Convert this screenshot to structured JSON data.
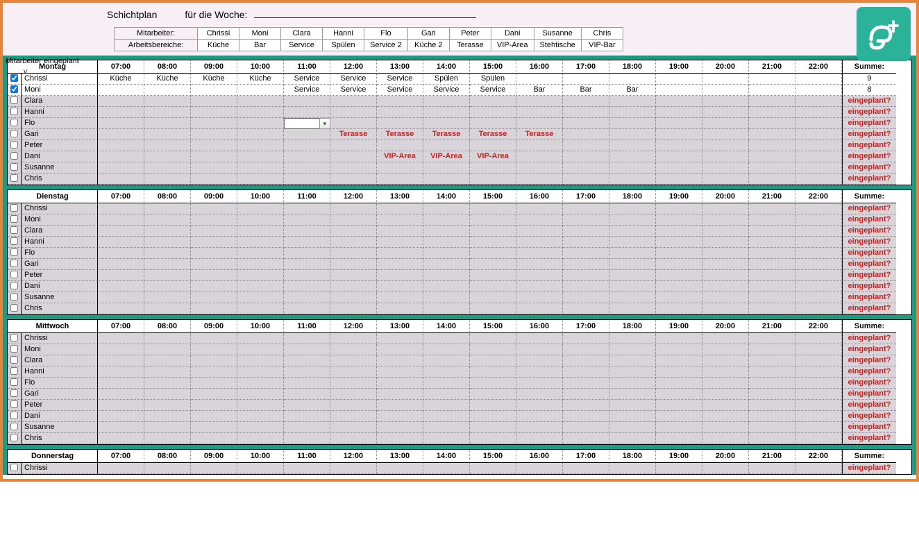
{
  "colors": {
    "border_outer": "#e8833a",
    "teal": "#1f9984",
    "header_bg": "#f9f0f5",
    "shaded": "#d9d4d9",
    "warn": "#cc2020",
    "logo_bg": "#2bb39a"
  },
  "header": {
    "title1": "Schichtplan",
    "title2": "für die Woche:",
    "staff_label": "Mitarbeiter:",
    "area_label": "Arbeitsbereiche:",
    "side_label": "Mitarbeiter eingeplant",
    "side_v": "v",
    "staff": [
      "Chrissi",
      "Moni",
      "Clara",
      "Hanni",
      "Flo",
      "Gari",
      "Peter",
      "Dani",
      "Susanne",
      "Chris"
    ],
    "areas": [
      "Küche",
      "Bar",
      "Service",
      "Spülen",
      "Service 2",
      "Küche 2",
      "Terasse",
      "VIP-Area",
      "Stehtische",
      "VIP-Bar"
    ]
  },
  "hours": [
    "07:00",
    "08:00",
    "09:00",
    "10:00",
    "11:00",
    "12:00",
    "13:00",
    "14:00",
    "15:00",
    "16:00",
    "17:00",
    "18:00",
    "19:00",
    "20:00",
    "21:00",
    "22:00"
  ],
  "sum_label": "Summe:",
  "warn_text": "eingeplant?",
  "days": [
    {
      "name": "Montag",
      "rows": [
        {
          "checked": true,
          "name": "Chrissi",
          "shaded": false,
          "sum": "9",
          "slots": [
            "Küche",
            "Küche",
            "Küche",
            "Küche",
            "Service",
            "Service",
            "Service",
            "Spülen",
            "Spülen",
            "",
            "",
            "",
            "",
            "",
            "",
            ""
          ]
        },
        {
          "checked": true,
          "name": "Moni",
          "shaded": false,
          "sum": "8",
          "slots": [
            "",
            "",
            "",
            "",
            "Service",
            "Service",
            "Service",
            "Service",
            "Service",
            "Bar",
            "Bar",
            "Bar",
            "",
            "",
            "",
            ""
          ]
        },
        {
          "checked": false,
          "name": "Clara",
          "shaded": true,
          "sum": "eingeplant?",
          "slots": [
            "",
            "",
            "",
            "",
            "",
            "",
            "",
            "",
            "",
            "",
            "",
            "",
            "",
            "",
            "",
            ""
          ]
        },
        {
          "checked": false,
          "name": "Hanni",
          "shaded": true,
          "sum": "eingeplant?",
          "slots": [
            "",
            "",
            "",
            "",
            "",
            "",
            "",
            "",
            "",
            "",
            "",
            "",
            "",
            "",
            "",
            ""
          ]
        },
        {
          "checked": false,
          "name": "Flo",
          "shaded": true,
          "sum": "eingeplant?",
          "selected_slot": 4,
          "slots": [
            "",
            "",
            "",
            "",
            "",
            "",
            "",
            "",
            "",
            "",
            "",
            "",
            "",
            "",
            "",
            ""
          ]
        },
        {
          "checked": false,
          "name": "Gari",
          "shaded": true,
          "sum": "eingeplant?",
          "red": true,
          "slots": [
            "",
            "",
            "",
            "",
            "",
            "Terasse",
            "Terasse",
            "Terasse",
            "Terasse",
            "Terasse",
            "",
            "",
            "",
            "",
            "",
            ""
          ]
        },
        {
          "checked": false,
          "name": "Peter",
          "shaded": true,
          "sum": "eingeplant?",
          "slots": [
            "",
            "",
            "",
            "",
            "",
            "",
            "",
            "",
            "",
            "",
            "",
            "",
            "",
            "",
            "",
            ""
          ]
        },
        {
          "checked": false,
          "name": "Dani",
          "shaded": true,
          "sum": "eingeplant?",
          "red": true,
          "slots": [
            "",
            "",
            "",
            "",
            "",
            "",
            "VIP-Area",
            "VIP-Area",
            "VIP-Area",
            "",
            "",
            "",
            "",
            "",
            "",
            ""
          ]
        },
        {
          "checked": false,
          "name": "Susanne",
          "shaded": true,
          "sum": "eingeplant?",
          "slots": [
            "",
            "",
            "",
            "",
            "",
            "",
            "",
            "",
            "",
            "",
            "",
            "",
            "",
            "",
            "",
            ""
          ]
        },
        {
          "checked": false,
          "name": "Chris",
          "shaded": true,
          "sum": "eingeplant?",
          "slots": [
            "",
            "",
            "",
            "",
            "",
            "",
            "",
            "",
            "",
            "",
            "",
            "",
            "",
            "",
            "",
            ""
          ]
        }
      ]
    },
    {
      "name": "Dienstag",
      "rows": [
        {
          "checked": false,
          "name": "Chrissi",
          "shaded": true,
          "sum": "eingeplant?",
          "slots": [
            "",
            "",
            "",
            "",
            "",
            "",
            "",
            "",
            "",
            "",
            "",
            "",
            "",
            "",
            "",
            ""
          ]
        },
        {
          "checked": false,
          "name": "Moni",
          "shaded": true,
          "sum": "eingeplant?",
          "slots": [
            "",
            "",
            "",
            "",
            "",
            "",
            "",
            "",
            "",
            "",
            "",
            "",
            "",
            "",
            "",
            ""
          ]
        },
        {
          "checked": false,
          "name": "Clara",
          "shaded": true,
          "sum": "eingeplant?",
          "slots": [
            "",
            "",
            "",
            "",
            "",
            "",
            "",
            "",
            "",
            "",
            "",
            "",
            "",
            "",
            "",
            ""
          ]
        },
        {
          "checked": false,
          "name": "Hanni",
          "shaded": true,
          "sum": "eingeplant?",
          "slots": [
            "",
            "",
            "",
            "",
            "",
            "",
            "",
            "",
            "",
            "",
            "",
            "",
            "",
            "",
            "",
            ""
          ]
        },
        {
          "checked": false,
          "name": "Flo",
          "shaded": true,
          "sum": "eingeplant?",
          "slots": [
            "",
            "",
            "",
            "",
            "",
            "",
            "",
            "",
            "",
            "",
            "",
            "",
            "",
            "",
            "",
            ""
          ]
        },
        {
          "checked": false,
          "name": "Gari",
          "shaded": true,
          "sum": "eingeplant?",
          "slots": [
            "",
            "",
            "",
            "",
            "",
            "",
            "",
            "",
            "",
            "",
            "",
            "",
            "",
            "",
            "",
            ""
          ]
        },
        {
          "checked": false,
          "name": "Peter",
          "shaded": true,
          "sum": "eingeplant?",
          "slots": [
            "",
            "",
            "",
            "",
            "",
            "",
            "",
            "",
            "",
            "",
            "",
            "",
            "",
            "",
            "",
            ""
          ]
        },
        {
          "checked": false,
          "name": "Dani",
          "shaded": true,
          "sum": "eingeplant?",
          "slots": [
            "",
            "",
            "",
            "",
            "",
            "",
            "",
            "",
            "",
            "",
            "",
            "",
            "",
            "",
            "",
            ""
          ]
        },
        {
          "checked": false,
          "name": "Susanne",
          "shaded": true,
          "sum": "eingeplant?",
          "slots": [
            "",
            "",
            "",
            "",
            "",
            "",
            "",
            "",
            "",
            "",
            "",
            "",
            "",
            "",
            "",
            ""
          ]
        },
        {
          "checked": false,
          "name": "Chris",
          "shaded": true,
          "sum": "eingeplant?",
          "slots": [
            "",
            "",
            "",
            "",
            "",
            "",
            "",
            "",
            "",
            "",
            "",
            "",
            "",
            "",
            "",
            ""
          ]
        }
      ]
    },
    {
      "name": "Mittwoch",
      "rows": [
        {
          "checked": false,
          "name": "Chrissi",
          "shaded": true,
          "sum": "eingeplant?",
          "slots": [
            "",
            "",
            "",
            "",
            "",
            "",
            "",
            "",
            "",
            "",
            "",
            "",
            "",
            "",
            "",
            ""
          ]
        },
        {
          "checked": false,
          "name": "Moni",
          "shaded": true,
          "sum": "eingeplant?",
          "slots": [
            "",
            "",
            "",
            "",
            "",
            "",
            "",
            "",
            "",
            "",
            "",
            "",
            "",
            "",
            "",
            ""
          ]
        },
        {
          "checked": false,
          "name": "Clara",
          "shaded": true,
          "sum": "eingeplant?",
          "slots": [
            "",
            "",
            "",
            "",
            "",
            "",
            "",
            "",
            "",
            "",
            "",
            "",
            "",
            "",
            "",
            ""
          ]
        },
        {
          "checked": false,
          "name": "Hanni",
          "shaded": true,
          "sum": "eingeplant?",
          "slots": [
            "",
            "",
            "",
            "",
            "",
            "",
            "",
            "",
            "",
            "",
            "",
            "",
            "",
            "",
            "",
            ""
          ]
        },
        {
          "checked": false,
          "name": "Flo",
          "shaded": true,
          "sum": "eingeplant?",
          "slots": [
            "",
            "",
            "",
            "",
            "",
            "",
            "",
            "",
            "",
            "",
            "",
            "",
            "",
            "",
            "",
            ""
          ]
        },
        {
          "checked": false,
          "name": "Gari",
          "shaded": true,
          "sum": "eingeplant?",
          "slots": [
            "",
            "",
            "",
            "",
            "",
            "",
            "",
            "",
            "",
            "",
            "",
            "",
            "",
            "",
            "",
            ""
          ]
        },
        {
          "checked": false,
          "name": "Peter",
          "shaded": true,
          "sum": "eingeplant?",
          "slots": [
            "",
            "",
            "",
            "",
            "",
            "",
            "",
            "",
            "",
            "",
            "",
            "",
            "",
            "",
            "",
            ""
          ]
        },
        {
          "checked": false,
          "name": "Dani",
          "shaded": true,
          "sum": "eingeplant?",
          "slots": [
            "",
            "",
            "",
            "",
            "",
            "",
            "",
            "",
            "",
            "",
            "",
            "",
            "",
            "",
            "",
            ""
          ]
        },
        {
          "checked": false,
          "name": "Susanne",
          "shaded": true,
          "sum": "eingeplant?",
          "slots": [
            "",
            "",
            "",
            "",
            "",
            "",
            "",
            "",
            "",
            "",
            "",
            "",
            "",
            "",
            "",
            ""
          ]
        },
        {
          "checked": false,
          "name": "Chris",
          "shaded": true,
          "sum": "eingeplant?",
          "slots": [
            "",
            "",
            "",
            "",
            "",
            "",
            "",
            "",
            "",
            "",
            "",
            "",
            "",
            "",
            "",
            ""
          ]
        }
      ]
    },
    {
      "name": "Donnerstag",
      "rows": [
        {
          "checked": false,
          "name": "Chrissi",
          "shaded": true,
          "sum": "eingeplant?",
          "slots": [
            "",
            "",
            "",
            "",
            "",
            "",
            "",
            "",
            "",
            "",
            "",
            "",
            "",
            "",
            "",
            ""
          ]
        }
      ]
    }
  ]
}
